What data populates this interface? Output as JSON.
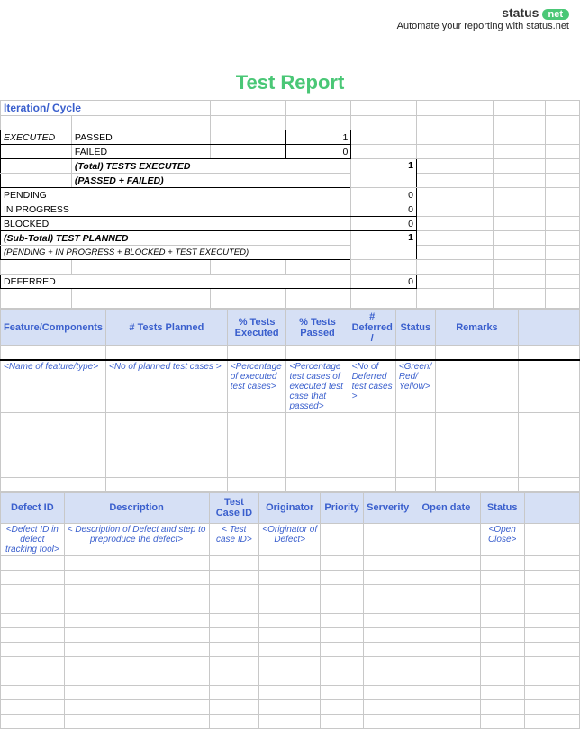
{
  "header": {
    "logo_text": "status",
    "logo_badge": "net",
    "tagline": "Automate your reporting with status.net"
  },
  "title": "Test Report",
  "iteration_label": "Iteration/ Cycle",
  "summary": {
    "executed": "EXECUTED",
    "passed": {
      "label": "PASSED",
      "value": "1"
    },
    "failed": {
      "label": "FAILED",
      "value": "0"
    },
    "total_exec": {
      "label": "(Total) TESTS EXECUTED",
      "sublabel": "(PASSED + FAILED)",
      "value": "1"
    },
    "pending": {
      "label": "PENDING",
      "value": "0"
    },
    "inprogress": {
      "label": "IN PROGRESS",
      "value": "0"
    },
    "blocked": {
      "label": "BLOCKED",
      "value": "0"
    },
    "subtotal": {
      "label": "(Sub-Total) TEST PLANNED",
      "sublabel": "(PENDING + IN PROGRESS + BLOCKED + TEST  EXECUTED)",
      "value": "1"
    },
    "deferred": {
      "label": "DEFERRED",
      "value": "0"
    }
  },
  "features": {
    "headers": [
      "Feature/Components",
      "# Tests Planned",
      "% Tests Executed",
      "% Tests Passed",
      "# Deferred /",
      "Status",
      "Remarks"
    ],
    "hints": [
      "<Name of feature/type>",
      "<No of  planned test cases >",
      "<Percentage of executed test cases>",
      "<Percentage test cases of executed test case that passed>",
      "<No of Deferred test cases >",
      "<Green/ Red/ Yellow>",
      ""
    ]
  },
  "defects": {
    "headers": [
      "Defect ID",
      "Description",
      "Test Case ID",
      "Originator",
      "Priority",
      "Serverity",
      "Open date",
      "Status"
    ],
    "hints": [
      "<Defect ID in defect tracking tool>",
      "< Description of Defect and step to preproduce the defect>",
      "< Test case ID>",
      "<Originator of Defect>",
      "",
      "",
      "",
      "<Open Close>"
    ],
    "empty_rows": 12
  },
  "colors": {
    "accent": "#4ac776",
    "header_bg": "#d6e0f5",
    "header_text": "#3a5fcd",
    "grid": "#c8c8c8"
  }
}
